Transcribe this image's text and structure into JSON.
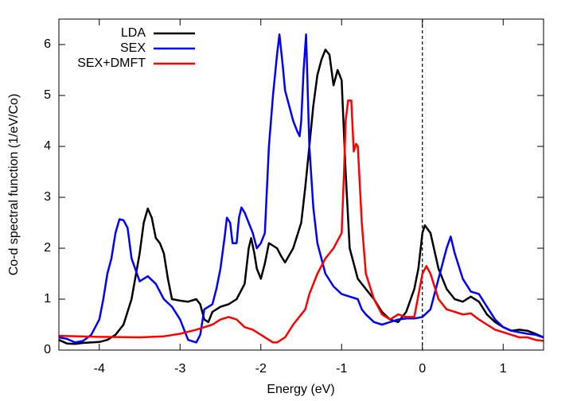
{
  "chart_data": {
    "type": "line",
    "xlabel": "Energy (eV)",
    "ylabel": "Co-d spectral function (1/eV/Co)",
    "xlim": [
      -4.5,
      1.5
    ],
    "ylim": [
      0,
      6.5
    ],
    "xticks": [
      -4,
      -3,
      -2,
      -1,
      0,
      1
    ],
    "yticks": [
      0,
      1,
      2,
      3,
      4,
      5,
      6
    ],
    "grid": false,
    "legend": "upper left",
    "vline": 0,
    "vline_style": "dashed",
    "series": [
      {
        "name": "LDA",
        "color": "#000000",
        "x": [
          -4.5,
          -4.4,
          -4.3,
          -4.2,
          -4.0,
          -3.9,
          -3.8,
          -3.7,
          -3.6,
          -3.5,
          -3.45,
          -3.4,
          -3.35,
          -3.3,
          -3.25,
          -3.2,
          -3.15,
          -3.1,
          -3.0,
          -2.9,
          -2.8,
          -2.75,
          -2.7,
          -2.65,
          -2.6,
          -2.5,
          -2.4,
          -2.3,
          -2.2,
          -2.15,
          -2.12,
          -2.08,
          -2.05,
          -2.0,
          -1.95,
          -1.9,
          -1.8,
          -1.75,
          -1.7,
          -1.6,
          -1.5,
          -1.45,
          -1.4,
          -1.35,
          -1.3,
          -1.25,
          -1.2,
          -1.15,
          -1.1,
          -1.05,
          -1.0,
          -0.95,
          -0.9,
          -0.8,
          -0.7,
          -0.6,
          -0.5,
          -0.4,
          -0.3,
          -0.2,
          -0.1,
          -0.05,
          0.0,
          0.03,
          0.1,
          0.2,
          0.3,
          0.4,
          0.5,
          0.6,
          0.7,
          0.8,
          0.9,
          1.0,
          1.1,
          1.2,
          1.3,
          1.4,
          1.5
        ],
        "values": [
          0.2,
          0.13,
          0.12,
          0.14,
          0.16,
          0.2,
          0.3,
          0.5,
          1.0,
          1.9,
          2.5,
          2.78,
          2.6,
          2.2,
          2.1,
          1.9,
          1.4,
          1.0,
          0.97,
          0.95,
          1.0,
          0.9,
          0.6,
          0.55,
          0.75,
          0.85,
          0.9,
          1.0,
          1.3,
          2.0,
          2.2,
          1.9,
          1.6,
          1.4,
          1.7,
          2.1,
          2.0,
          1.85,
          1.72,
          2.0,
          2.5,
          3.2,
          4.0,
          4.8,
          5.4,
          5.7,
          5.9,
          5.8,
          5.2,
          5.5,
          5.3,
          3.5,
          2.0,
          1.4,
          1.2,
          1.0,
          0.75,
          0.6,
          0.55,
          0.75,
          1.2,
          1.6,
          2.3,
          2.45,
          2.3,
          1.6,
          1.2,
          1.0,
          0.95,
          1.05,
          0.95,
          0.7,
          0.55,
          0.45,
          0.38,
          0.4,
          0.38,
          0.32,
          0.25
        ]
      },
      {
        "name": "SEX",
        "color": "#0000ff",
        "x": [
          -4.5,
          -4.4,
          -4.3,
          -4.2,
          -4.1,
          -4.0,
          -3.95,
          -3.9,
          -3.85,
          -3.8,
          -3.75,
          -3.7,
          -3.65,
          -3.6,
          -3.5,
          -3.4,
          -3.3,
          -3.2,
          -3.1,
          -3.0,
          -2.9,
          -2.8,
          -2.75,
          -2.7,
          -2.6,
          -2.55,
          -2.5,
          -2.45,
          -2.42,
          -2.38,
          -2.35,
          -2.3,
          -2.27,
          -2.24,
          -2.2,
          -2.15,
          -2.1,
          -2.05,
          -2.0,
          -1.95,
          -1.9,
          -1.85,
          -1.8,
          -1.77,
          -1.73,
          -1.7,
          -1.6,
          -1.55,
          -1.52,
          -1.5,
          -1.47,
          -1.44,
          -1.4,
          -1.35,
          -1.3,
          -1.2,
          -1.1,
          -1.0,
          -0.9,
          -0.8,
          -0.75,
          -0.7,
          -0.6,
          -0.5,
          -0.4,
          -0.3,
          -0.2,
          -0.1,
          0.0,
          0.1,
          0.2,
          0.3,
          0.35,
          0.4,
          0.5,
          0.6,
          0.7,
          0.8,
          0.9,
          1.0,
          1.1,
          1.2,
          1.3,
          1.4,
          1.5
        ],
        "values": [
          0.25,
          0.22,
          0.15,
          0.18,
          0.3,
          0.6,
          1.0,
          1.5,
          1.8,
          2.3,
          2.57,
          2.55,
          2.4,
          1.8,
          1.35,
          1.45,
          1.3,
          1.0,
          0.85,
          0.6,
          0.2,
          0.15,
          0.3,
          0.8,
          0.9,
          1.2,
          1.6,
          2.2,
          2.6,
          2.5,
          2.1,
          2.1,
          2.6,
          2.8,
          2.7,
          2.5,
          2.3,
          2.0,
          2.1,
          2.3,
          4.0,
          5.0,
          5.8,
          6.2,
          5.6,
          5.1,
          4.5,
          4.3,
          4.2,
          4.5,
          5.5,
          6.2,
          4.0,
          2.8,
          2.1,
          1.5,
          1.25,
          1.1,
          1.05,
          1.0,
          0.8,
          0.7,
          0.55,
          0.5,
          0.55,
          0.6,
          0.62,
          0.62,
          0.65,
          0.8,
          1.4,
          2.0,
          2.23,
          1.9,
          1.4,
          1.15,
          1.1,
          0.85,
          0.6,
          0.45,
          0.38,
          0.35,
          0.32,
          0.3,
          0.25
        ]
      },
      {
        "name": "SEX+DMFT",
        "color": "#ff0000",
        "x": [
          -4.5,
          -4.0,
          -3.5,
          -3.2,
          -3.0,
          -2.8,
          -2.6,
          -2.5,
          -2.4,
          -2.3,
          -2.2,
          -2.1,
          -2.0,
          -1.9,
          -1.85,
          -1.8,
          -1.7,
          -1.6,
          -1.5,
          -1.45,
          -1.4,
          -1.3,
          -1.2,
          -1.15,
          -1.1,
          -1.0,
          -0.97,
          -0.95,
          -0.92,
          -0.88,
          -0.85,
          -0.82,
          -0.8,
          -0.75,
          -0.7,
          -0.6,
          -0.5,
          -0.4,
          -0.3,
          -0.2,
          -0.1,
          0.0,
          0.05,
          0.1,
          0.2,
          0.3,
          0.4,
          0.5,
          0.6,
          0.7,
          0.8,
          0.9,
          1.0,
          1.1,
          1.2,
          1.3,
          1.4,
          1.5
        ],
        "values": [
          0.28,
          0.26,
          0.25,
          0.27,
          0.32,
          0.4,
          0.5,
          0.6,
          0.65,
          0.6,
          0.45,
          0.4,
          0.3,
          0.2,
          0.15,
          0.15,
          0.25,
          0.5,
          0.7,
          0.8,
          1.1,
          1.5,
          1.8,
          1.9,
          2.0,
          2.3,
          3.5,
          4.5,
          4.9,
          4.9,
          3.9,
          4.05,
          4.0,
          2.5,
          1.5,
          1.0,
          0.7,
          0.6,
          0.7,
          0.65,
          0.65,
          1.5,
          1.65,
          1.5,
          1.0,
          0.8,
          0.75,
          0.7,
          0.72,
          0.6,
          0.5,
          0.4,
          0.35,
          0.3,
          0.25,
          0.25,
          0.2,
          0.18
        ]
      }
    ]
  }
}
